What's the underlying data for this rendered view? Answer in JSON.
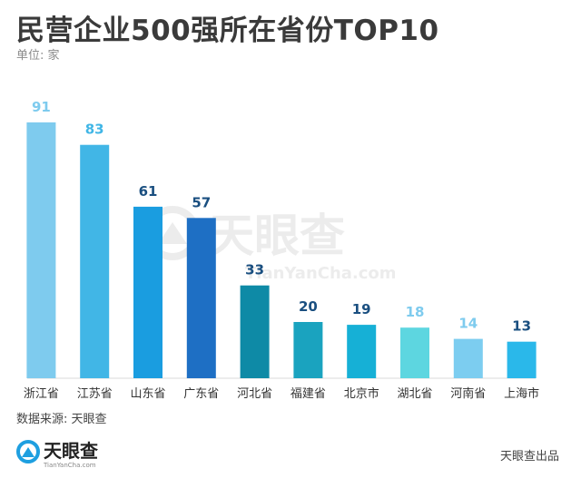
{
  "header": {
    "title": "民营企业500强所在省份TOP10",
    "unit": "单位: 家"
  },
  "chart_data": {
    "type": "bar",
    "title": "民营企业500强所在省份TOP10",
    "unit": "单位: 家",
    "categories": [
      "浙江省",
      "江苏省",
      "山东省",
      "广东省",
      "河北省",
      "福建省",
      "北京市",
      "湖北省",
      "河南省",
      "上海市"
    ],
    "values": [
      91,
      83,
      61,
      57,
      33,
      20,
      19,
      18,
      14,
      13
    ],
    "colors": [
      "#7ecbee",
      "#41b6e6",
      "#1a9de0",
      "#1e6fc4",
      "#0e8aa6",
      "#1aa3bf",
      "#16b0d6",
      "#5dd6e0",
      "#7ccdf0",
      "#2ab8ea"
    ],
    "label_colors": [
      "#7ecbee",
      "#41b6e6",
      "#1a4f80",
      "#1a4f80",
      "#1a4f80",
      "#1a4f80",
      "#1a4f80",
      "#7ecbee",
      "#7ecbee",
      "#1a4f80"
    ],
    "ylim": [
      0,
      100
    ],
    "xlabel": "",
    "ylabel": ""
  },
  "watermark": {
    "brand": "天眼查",
    "url": "TianYanCha.com"
  },
  "footer": {
    "source": "数据来源: 天眼查",
    "logo_text": "天眼查",
    "logo_url": "TianYanCha.com",
    "credit": "天眼查出品"
  }
}
